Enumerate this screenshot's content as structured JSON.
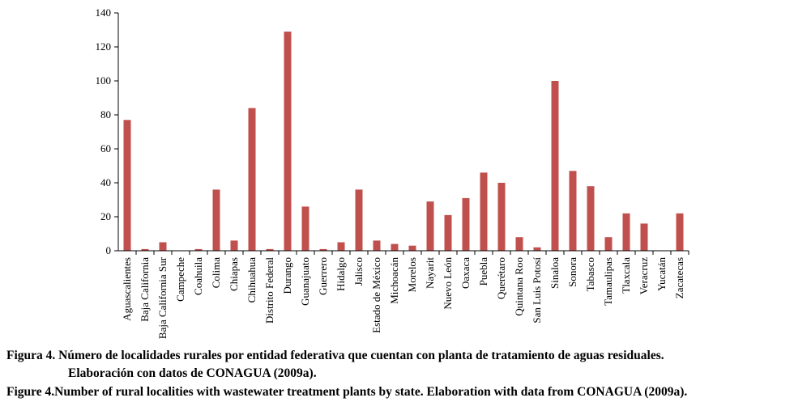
{
  "chart_data": {
    "type": "bar",
    "categories": [
      "Aguascalientes",
      "Baja California",
      "Baja California Sur",
      "Campeche",
      "Coahuila",
      "Colima",
      "Chiapas",
      "Chihuahua",
      "Distrito Federal",
      "Durango",
      "Guanajuato",
      "Guerrero",
      "Hidalgo",
      "Jalisco",
      "Estado de México",
      "Michoacán",
      "Morelos",
      "Nayarit",
      "Nuevo León",
      "Oaxaca",
      "Puebla",
      "Querétaro",
      "Quintana Roo",
      "San Luis Potosí",
      "Sinaloa",
      "Sonora",
      "Tabasco",
      "Tamaulipas",
      "Tlaxcala",
      "Veracruz",
      "Yucatán",
      "Zacatecas"
    ],
    "values": [
      77,
      1,
      5,
      0,
      1,
      36,
      6,
      84,
      1,
      129,
      26,
      1,
      5,
      36,
      6,
      4,
      3,
      29,
      21,
      31,
      46,
      40,
      8,
      2,
      100,
      47,
      38,
      8,
      22,
      16,
      0,
      22
    ],
    "ylim": [
      0,
      140
    ],
    "yticks": [
      "0",
      "20",
      "40",
      "60",
      "80",
      "100",
      "120",
      "140"
    ],
    "bar_color": "#c0504d",
    "grid": false
  },
  "captions": {
    "es_label": "Figura 4.",
    "es_line1": "Número de localidades rurales por entidad federativa que cuentan con planta de tratamiento de aguas residuales.",
    "es_line2": "Elaboración con datos de CONAGUA (2009a).",
    "en_label": "Figure 4.",
    "en_text": "Number of rural localities with wastewater treatment plants by state. Elaboration with data from CONAGUA (2009a)."
  }
}
